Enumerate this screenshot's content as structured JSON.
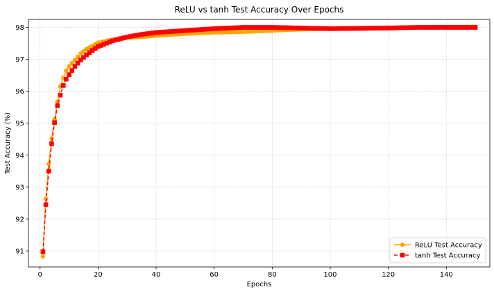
{
  "chart_data": {
    "type": "line",
    "title": "ReLU vs tanh Test Accuracy Over Epochs",
    "xlabel": "Epochs",
    "ylabel": "Test Accuracy (%)",
    "xlim": [
      -4,
      155
    ],
    "ylim": [
      90.5,
      98.25
    ],
    "xticks": [
      0,
      20,
      40,
      60,
      80,
      100,
      120,
      140
    ],
    "yticks": [
      91,
      92,
      93,
      94,
      95,
      96,
      97,
      98
    ],
    "grid": true,
    "legend_position": "bottom-right",
    "series": [
      {
        "name": "ReLU Test Accuracy",
        "color": "#ffa500",
        "marker": "circle",
        "linestyle": "solid",
        "anchors": [
          [
            1,
            90.83
          ],
          [
            2,
            92.63
          ],
          [
            3,
            93.73
          ],
          [
            4,
            94.52
          ],
          [
            5,
            95.12
          ],
          [
            6,
            95.68
          ],
          [
            7,
            96.15
          ],
          [
            8,
            96.42
          ],
          [
            9,
            96.65
          ],
          [
            10,
            96.78
          ],
          [
            12,
            96.98
          ],
          [
            14,
            97.18
          ],
          [
            16,
            97.32
          ],
          [
            18,
            97.42
          ],
          [
            20,
            97.52
          ],
          [
            25,
            97.62
          ],
          [
            30,
            97.68
          ],
          [
            35,
            97.7
          ],
          [
            40,
            97.74
          ],
          [
            50,
            97.8
          ],
          [
            60,
            97.84
          ],
          [
            70,
            97.86
          ],
          [
            80,
            97.9
          ],
          [
            90,
            97.94
          ],
          [
            100,
            97.96
          ],
          [
            110,
            97.98
          ],
          [
            120,
            97.99
          ],
          [
            130,
            98.0
          ],
          [
            140,
            98.01
          ],
          [
            150,
            98.02
          ]
        ]
      },
      {
        "name": "tanh Test Accuracy",
        "color": "#ff0000",
        "marker": "square",
        "linestyle": "dashed",
        "anchors": [
          [
            1,
            90.98
          ],
          [
            2,
            92.45
          ],
          [
            3,
            93.5
          ],
          [
            4,
            94.36
          ],
          [
            5,
            95.02
          ],
          [
            6,
            95.55
          ],
          [
            7,
            95.88
          ],
          [
            8,
            96.18
          ],
          [
            9,
            96.38
          ],
          [
            10,
            96.52
          ],
          [
            12,
            96.78
          ],
          [
            14,
            96.98
          ],
          [
            16,
            97.14
          ],
          [
            18,
            97.28
          ],
          [
            20,
            97.4
          ],
          [
            25,
            97.58
          ],
          [
            30,
            97.7
          ],
          [
            35,
            97.78
          ],
          [
            40,
            97.84
          ],
          [
            50,
            97.9
          ],
          [
            60,
            97.96
          ],
          [
            70,
            98.0
          ],
          [
            80,
            98.0
          ],
          [
            90,
            97.98
          ],
          [
            100,
            97.96
          ],
          [
            110,
            97.97
          ],
          [
            120,
            97.98
          ],
          [
            130,
            98.0
          ],
          [
            140,
            98.0
          ],
          [
            150,
            98.0
          ]
        ]
      }
    ]
  }
}
